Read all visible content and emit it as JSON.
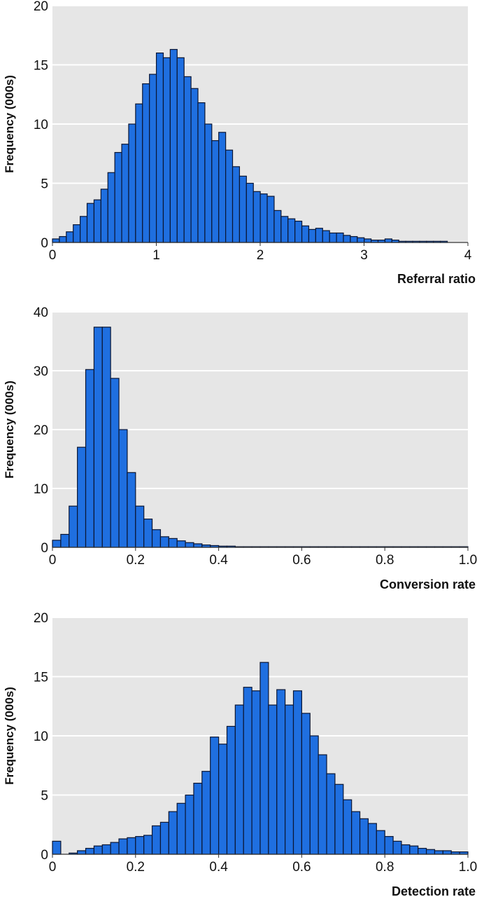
{
  "chart_data": [
    {
      "type": "bar",
      "ylabel": "Frequency (000s)",
      "xlabel": "Referral ratio",
      "xlim": [
        0,
        4
      ],
      "ylim": [
        0,
        20
      ],
      "xticks": [
        "0",
        "1",
        "2",
        "3",
        "4"
      ],
      "yticks": [
        "0",
        "5",
        "10",
        "15",
        "20"
      ],
      "grid": true,
      "bin_width": 0.0667,
      "bar_color": "#1f6fe0",
      "background": "#e6e6e6",
      "values": [
        0.3,
        0.5,
        0.9,
        1.5,
        2.2,
        3.3,
        3.6,
        4.5,
        5.9,
        7.6,
        8.3,
        10.0,
        11.7,
        13.4,
        14.2,
        16.0,
        15.6,
        16.3,
        15.6,
        14.0,
        13.0,
        11.8,
        10.0,
        8.6,
        9.3,
        7.8,
        6.4,
        5.6,
        5.0,
        4.3,
        4.1,
        3.9,
        2.7,
        2.2,
        2.0,
        1.8,
        1.4,
        1.1,
        1.2,
        1.0,
        0.8,
        0.8,
        0.6,
        0.5,
        0.4,
        0.3,
        0.2,
        0.2,
        0.3,
        0.2,
        0.1,
        0.1,
        0.1,
        0.1,
        0.1,
        0.1,
        0.1
      ]
    },
    {
      "type": "bar",
      "ylabel": "Frequency (000s)",
      "xlabel": "Conversion rate",
      "xlim": [
        0,
        1.0
      ],
      "ylim": [
        0,
        40
      ],
      "xticks": [
        "0",
        "0.2",
        "0.4",
        "0.6",
        "0.8",
        "1.0"
      ],
      "yticks": [
        "0",
        "10",
        "20",
        "30",
        "40"
      ],
      "grid": true,
      "bin_width": 0.02,
      "bar_color": "#1f6fe0",
      "background": "#e6e6e6",
      "values": [
        1.2,
        2.2,
        7.0,
        17.0,
        30.2,
        37.4,
        37.4,
        28.7,
        20.0,
        12.7,
        7.0,
        4.8,
        3.0,
        1.8,
        1.5,
        1.1,
        0.8,
        0.6,
        0.4,
        0.3,
        0.2,
        0.2,
        0.1,
        0.1,
        0.1,
        0.1,
        0.1,
        0.1,
        0.1,
        0.1,
        0.1,
        0.1,
        0.1,
        0.1,
        0.1,
        0.1,
        0.1,
        0.1,
        0.1,
        0.1,
        0.1,
        0.1,
        0.1,
        0.1,
        0.1,
        0.1,
        0.1,
        0.1,
        0.1,
        0.1
      ]
    },
    {
      "type": "bar",
      "ylabel": "Frequency (000s)",
      "xlabel": "Detection rate",
      "xlim": [
        0,
        1.0
      ],
      "ylim": [
        0,
        20
      ],
      "xticks": [
        "0",
        "0.2",
        "0.4",
        "0.6",
        "0.8",
        "1.0"
      ],
      "yticks": [
        "0",
        "5",
        "10",
        "15",
        "20"
      ],
      "grid": true,
      "bin_width": 0.02,
      "bar_color": "#1f6fe0",
      "background": "#e6e6e6",
      "values": [
        1.1,
        0,
        0.1,
        0.3,
        0.5,
        0.7,
        0.8,
        1.0,
        1.3,
        1.4,
        1.5,
        1.6,
        2.4,
        2.7,
        3.6,
        4.3,
        5.0,
        6.0,
        7.0,
        9.9,
        9.3,
        10.8,
        12.6,
        14.1,
        13.8,
        16.2,
        12.6,
        13.9,
        12.6,
        13.8,
        11.9,
        10.0,
        8.4,
        6.8,
        5.9,
        4.6,
        3.6,
        3.0,
        2.6,
        2.0,
        1.5,
        1.1,
        0.8,
        0.7,
        0.5,
        0.4,
        0.3,
        0.3,
        0.2,
        0.2,
        0.1,
        0.1,
        0.1,
        0.1,
        0.1,
        0.1,
        0.1
      ]
    }
  ]
}
